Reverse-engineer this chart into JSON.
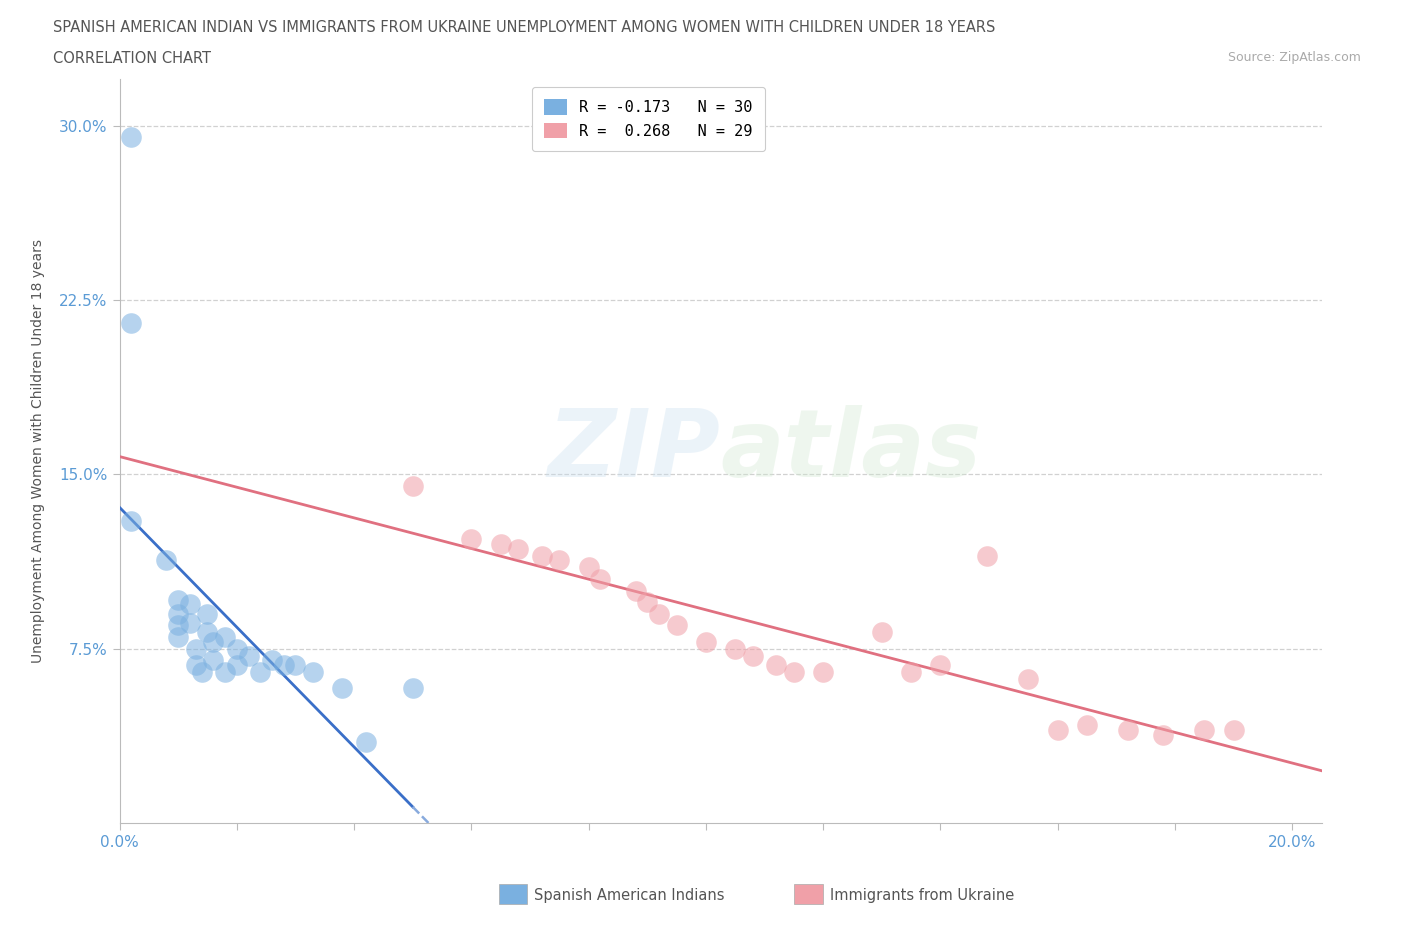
{
  "title_line1": "SPANISH AMERICAN INDIAN VS IMMIGRANTS FROM UKRAINE UNEMPLOYMENT AMONG WOMEN WITH CHILDREN UNDER 18 YEARS",
  "title_line2": "CORRELATION CHART",
  "source": "Source: ZipAtlas.com",
  "ylabel": "Unemployment Among Women with Children Under 18 years",
  "xlim": [
    0.0,
    0.205
  ],
  "ylim": [
    0.0,
    0.32
  ],
  "ytick_vals": [
    0.075,
    0.15,
    0.225,
    0.3
  ],
  "ytick_labels": [
    "7.5%",
    "15.0%",
    "22.5%",
    "30.0%"
  ],
  "blue_color": "#7ab0e0",
  "pink_color": "#f0a0a8",
  "trendline_blue_color": "#3a6fc8",
  "trendline_pink_color": "#e07080",
  "trendline_dash_color": "#88aadd",
  "bg_color": "#ffffff",
  "grid_color": "#cccccc",
  "legend_r1": "R = -0.173   N = 30",
  "legend_r2": "R =  0.268   N = 29",
  "bottom_legend_blue": "Spanish American Indians",
  "bottom_legend_pink": "Immigrants from Ukraine",
  "blue_scatter_x": [
    0.002,
    0.002,
    0.002,
    0.008,
    0.01,
    0.01,
    0.01,
    0.01,
    0.012,
    0.012,
    0.013,
    0.013,
    0.014,
    0.015,
    0.015,
    0.016,
    0.016,
    0.018,
    0.018,
    0.02,
    0.02,
    0.022,
    0.024,
    0.026,
    0.028,
    0.03,
    0.033,
    0.038,
    0.042,
    0.05
  ],
  "blue_scatter_y": [
    0.295,
    0.215,
    0.13,
    0.113,
    0.096,
    0.09,
    0.085,
    0.08,
    0.094,
    0.086,
    0.075,
    0.068,
    0.065,
    0.09,
    0.082,
    0.078,
    0.07,
    0.08,
    0.065,
    0.075,
    0.068,
    0.072,
    0.065,
    0.07,
    0.068,
    0.068,
    0.065,
    0.058,
    0.035,
    0.058
  ],
  "pink_scatter_x": [
    0.05,
    0.06,
    0.065,
    0.068,
    0.072,
    0.075,
    0.08,
    0.082,
    0.088,
    0.09,
    0.092,
    0.095,
    0.1,
    0.105,
    0.108,
    0.112,
    0.115,
    0.12,
    0.13,
    0.135,
    0.14,
    0.148,
    0.155,
    0.16,
    0.165,
    0.172,
    0.178,
    0.185,
    0.19
  ],
  "pink_scatter_y": [
    0.145,
    0.122,
    0.12,
    0.118,
    0.115,
    0.113,
    0.11,
    0.105,
    0.1,
    0.095,
    0.09,
    0.085,
    0.078,
    0.075,
    0.072,
    0.068,
    0.065,
    0.065,
    0.082,
    0.065,
    0.068,
    0.115,
    0.062,
    0.04,
    0.042,
    0.04,
    0.038,
    0.04,
    0.04
  ]
}
